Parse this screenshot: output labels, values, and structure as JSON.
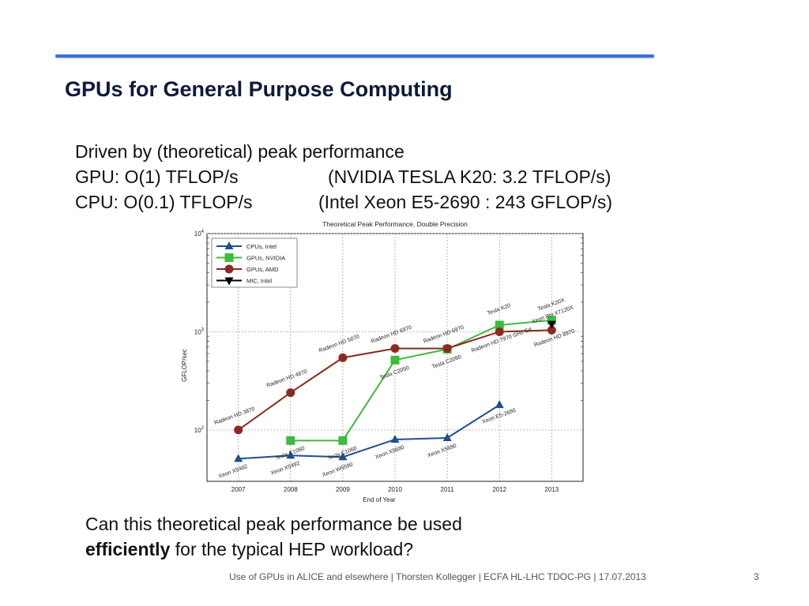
{
  "slide": {
    "title": "GPUs for General Purpose Computing",
    "bullets": [
      {
        "left": "Driven by (theoretical) peak performance",
        "right": ""
      },
      {
        "left": "GPU: O(1) TFLOP/s",
        "right": "(NVIDIA TESLA K20: 3.2 TFLOP/s)"
      },
      {
        "left": "CPU: O(0.1) TFLOP/s",
        "right": "(Intel Xeon E5-2690 : 243 GFLOP/s)"
      }
    ],
    "question_line1": "Can this theoretical peak performance be used",
    "question_bold": "efficiently",
    "question_rest": " for the typical HEP workload?",
    "footer": "Use of GPUs in ALICE and elsewhere | Thorsten Kollegger | ECFA HL-LHC TDOC-PG | 17.07.2013",
    "page_number": "3",
    "accent_color": "#3b6fd8"
  },
  "chart_data": {
    "type": "line",
    "title": "Theoretical Peak Performance, Double Precision",
    "xlabel": "End of Year",
    "ylabel": "GFLOP/sec",
    "yscale": "log",
    "ylim": [
      30,
      10000
    ],
    "x": [
      2007,
      2008,
      2009,
      2010,
      2011,
      2012,
      2013
    ],
    "y_ticks": [
      {
        "base": "10",
        "exp": "2",
        "value": 100
      },
      {
        "base": "10",
        "exp": "3",
        "value": 1000
      },
      {
        "base": "10",
        "exp": "4",
        "value": 10000
      }
    ],
    "grid": true,
    "legend_position": "top-left",
    "series": [
      {
        "name": "CPUs, Intel",
        "color": "#1f4f8c",
        "marker": "triangle",
        "points": [
          {
            "x": 2007,
            "y": 51,
            "label": "Xeon X5482"
          },
          {
            "x": 2008,
            "y": 55,
            "label": "Xeon X5492"
          },
          {
            "x": 2009,
            "y": 53,
            "label": "Xeon W5590"
          },
          {
            "x": 2010,
            "y": 80,
            "label": "Xeon X5680"
          },
          {
            "x": 2011,
            "y": 83,
            "label": "Xeon X5690"
          },
          {
            "x": 2012,
            "y": 180,
            "label": "Xeon E5-2690"
          }
        ]
      },
      {
        "name": "GPUs, NVIDIA",
        "color": "#3dbb3d",
        "marker": "square",
        "points": [
          {
            "x": 2008,
            "y": 78,
            "label": "Tesla C1060"
          },
          {
            "x": 2009,
            "y": 78,
            "label": "Tesla C1060"
          },
          {
            "x": 2010,
            "y": 515,
            "label": "Tesla C2050"
          },
          {
            "x": 2011,
            "y": 665,
            "label": "Tesla C2090"
          },
          {
            "x": 2012,
            "y": 1170,
            "label": "Tesla K20"
          },
          {
            "x": 2013,
            "y": 1310,
            "label": "Tesla K20X"
          }
        ]
      },
      {
        "name": "GPUs, AMD",
        "color": "#8b2a1f",
        "marker": "circle",
        "points": [
          {
            "x": 2007,
            "y": 100,
            "label": "Radeon HD 3870"
          },
          {
            "x": 2008,
            "y": 240,
            "label": "Radeon HD 4870"
          },
          {
            "x": 2009,
            "y": 544,
            "label": "Radeon HD 5870"
          },
          {
            "x": 2010,
            "y": 676,
            "label": "Radeon HD 6970"
          },
          {
            "x": 2011,
            "y": 676,
            "label": "Radeon HD 6970"
          },
          {
            "x": 2012,
            "y": 1000,
            "label": "Radeon HD 7970 GHz Ed."
          },
          {
            "x": 2013,
            "y": 1040,
            "label": "Radeon HD 8970"
          }
        ]
      },
      {
        "name": "MIC, Intel",
        "color": "#000000",
        "marker": "triangle-down",
        "points": [
          {
            "x": 2013,
            "y": 1200,
            "label": "Xeon Phi X7120X"
          }
        ]
      }
    ]
  }
}
